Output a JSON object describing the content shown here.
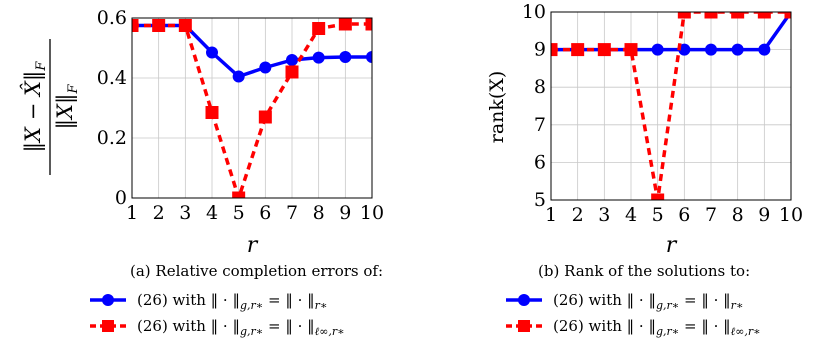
{
  "colors": {
    "blue": "#0000ff",
    "red": "#ff0000",
    "grid": "#c8c8c8"
  },
  "chart_data": [
    {
      "type": "line",
      "x": [
        1,
        2,
        3,
        4,
        5,
        6,
        7,
        8,
        9,
        10
      ],
      "xlim": [
        1,
        10
      ],
      "ylim": [
        0,
        0.6
      ],
      "yticks": [
        0,
        0.2,
        0.4,
        0.6
      ],
      "yticklabels": [
        "0",
        "0.2",
        "0.4",
        "0.6"
      ],
      "xticklabels": [
        "1",
        "2",
        "3",
        "4",
        "5",
        "6",
        "7",
        "8",
        "9",
        "10"
      ],
      "xlabel": "r",
      "ylabel": "‖X − X̂‖F / ‖X‖F",
      "grid": true,
      "series": [
        {
          "name": "(26) with ‖·‖g,r* = ‖·‖r*",
          "values": [
            0.575,
            0.575,
            0.575,
            0.485,
            0.405,
            0.435,
            0.46,
            0.468,
            0.47,
            0.47
          ]
        },
        {
          "name": "(26) with ‖·‖g,r* = ‖·‖ℓ∞,r*",
          "values": [
            0.575,
            0.575,
            0.575,
            0.285,
            0.0,
            0.27,
            0.42,
            0.565,
            0.58,
            0.58
          ]
        }
      ],
      "caption": "(a) Relative completion errors of:"
    },
    {
      "type": "line",
      "x": [
        1,
        2,
        3,
        4,
        5,
        6,
        7,
        8,
        9,
        10
      ],
      "xlim": [
        1,
        10
      ],
      "ylim": [
        5,
        10
      ],
      "yticks": [
        5,
        6,
        7,
        8,
        9,
        10
      ],
      "yticklabels": [
        "5",
        "6",
        "7",
        "8",
        "9",
        "10"
      ],
      "xticklabels": [
        "1",
        "2",
        "3",
        "4",
        "5",
        "6",
        "7",
        "8",
        "9",
        "10"
      ],
      "xlabel": "r",
      "ylabel": "rank(X)",
      "grid": true,
      "series": [
        {
          "name": "(26) with ‖·‖g,r* = ‖·‖r*",
          "values": [
            9,
            9,
            9,
            9,
            9,
            9,
            9,
            9,
            9,
            10
          ]
        },
        {
          "name": "(26) with ‖·‖g,r* = ‖·‖ℓ∞,r*",
          "values": [
            9,
            9,
            9,
            9,
            5,
            10,
            10,
            10,
            10,
            10
          ]
        }
      ],
      "caption": "(b) Rank of the solutions to:"
    }
  ]
}
